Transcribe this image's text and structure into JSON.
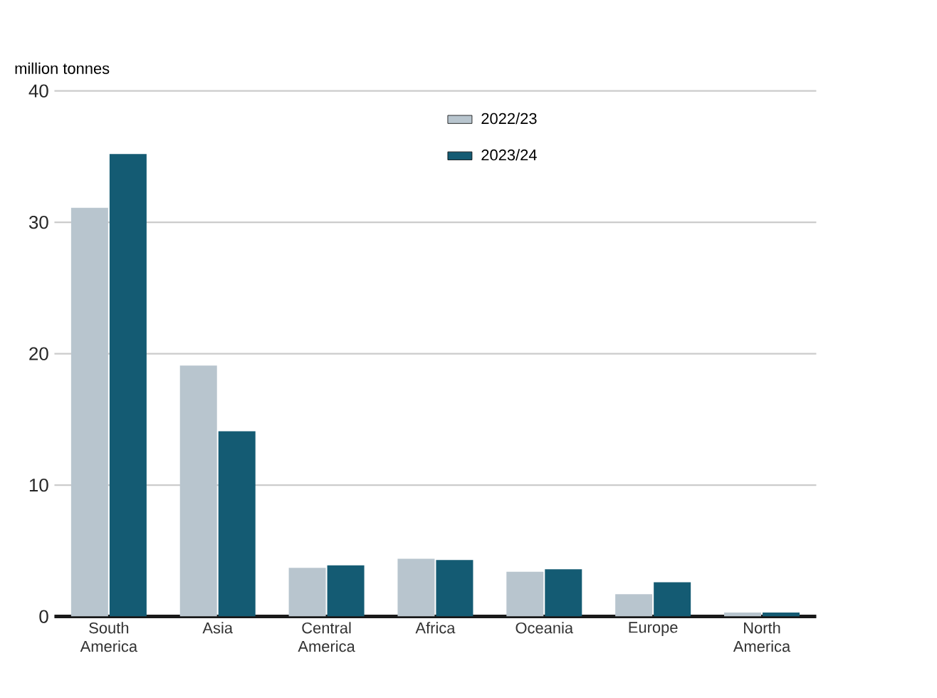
{
  "chart_data": {
    "type": "bar",
    "ylabel": "million tonnes",
    "categories": [
      "South America",
      "Asia",
      "Central America",
      "Africa",
      "Oceania",
      "Europe",
      "North America"
    ],
    "series": [
      {
        "name": "2022/23",
        "color": "#b8c5ce",
        "values": [
          31.1,
          19.1,
          3.7,
          4.4,
          3.4,
          1.7,
          0.3
        ]
      },
      {
        "name": "2023/24",
        "color": "#145b73",
        "values": [
          35.2,
          14.1,
          3.9,
          4.3,
          3.6,
          2.6,
          0.3
        ]
      }
    ],
    "ylim": [
      0,
      40
    ],
    "yticks": [
      0,
      10,
      20,
      30,
      40
    ],
    "grid": "y",
    "legend": "top right"
  }
}
